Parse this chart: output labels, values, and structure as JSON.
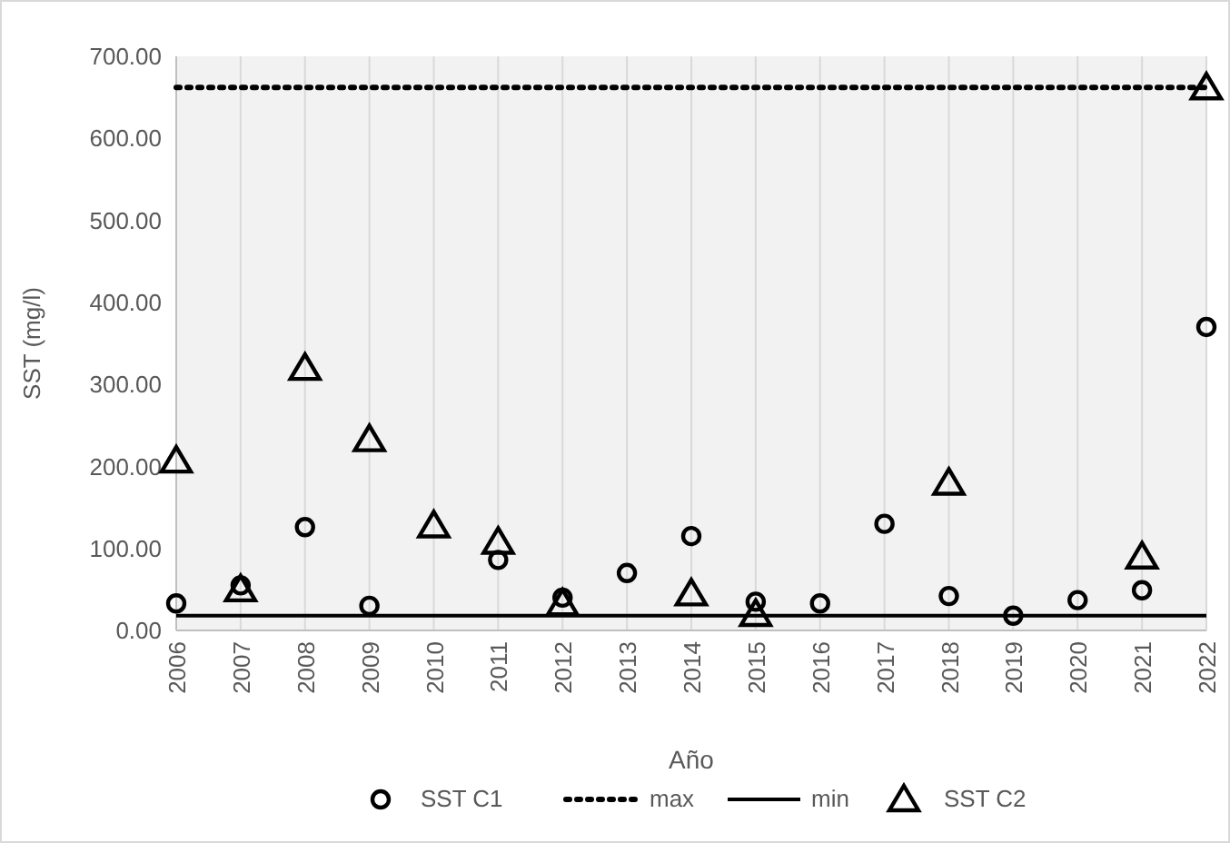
{
  "chart_data": {
    "type": "scatter",
    "xlabel": "Año",
    "ylabel": "SST (mg/l)",
    "categories": [
      "2006",
      "2007",
      "2008",
      "2009",
      "2010",
      "2011",
      "2012",
      "2013",
      "2014",
      "2015",
      "2016",
      "2017",
      "2018",
      "2019",
      "2020",
      "2021",
      "2022"
    ],
    "series": [
      {
        "name": "SST C1",
        "color": "#000000",
        "marker": "circle",
        "values": [
          33,
          55,
          126,
          30,
          null,
          86,
          40,
          70,
          115,
          35,
          33,
          130,
          42,
          18,
          37,
          49,
          370
        ]
      },
      {
        "name": "max",
        "type": "line",
        "color": "#000000",
        "marker": "none",
        "line_style": "dotted",
        "values": [
          662,
          662,
          662,
          662,
          662,
          662,
          662,
          662,
          662,
          662,
          662,
          662,
          662,
          662,
          662,
          662,
          662
        ]
      },
      {
        "name": "min",
        "type": "line",
        "color": "#000000",
        "marker": "none",
        "line_style": "solid",
        "values": [
          18,
          18,
          18,
          18,
          18,
          18,
          18,
          18,
          18,
          18,
          18,
          18,
          18,
          18,
          18,
          18,
          18
        ]
      },
      {
        "name": "SST C2",
        "color": "#000000",
        "marker": "triangle",
        "values": [
          207,
          50,
          320,
          233,
          128,
          108,
          33,
          null,
          45,
          20,
          null,
          null,
          180,
          null,
          null,
          90,
          662
        ]
      }
    ],
    "ylim": [
      0,
      700
    ],
    "yticks": [
      {
        "value": 0,
        "label": "0.00"
      },
      {
        "value": 100,
        "label": "100.00"
      },
      {
        "value": 200,
        "label": "200.00"
      },
      {
        "value": 300,
        "label": "300.00"
      },
      {
        "value": 400,
        "label": "400.00"
      },
      {
        "value": 500,
        "label": "500.00"
      },
      {
        "value": 600,
        "label": "600.00"
      },
      {
        "value": 700,
        "label": "700.00"
      }
    ],
    "grid": "x",
    "legend": "bottom"
  }
}
